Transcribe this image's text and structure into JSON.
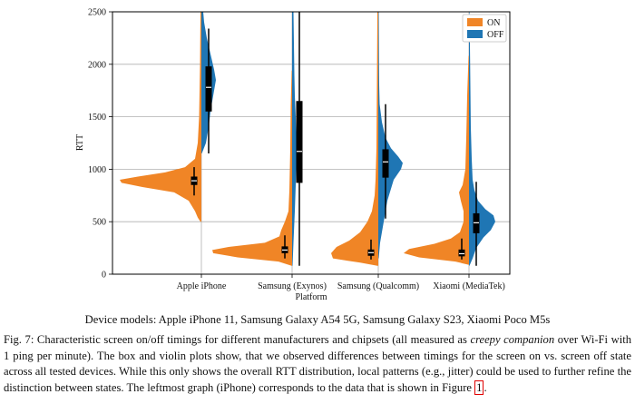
{
  "chart_data": {
    "type": "violin",
    "xlabel": "Platform",
    "ylabel": "RTT",
    "ylim": [
      0,
      2500
    ],
    "yticks": [
      "0",
      "500",
      "1000",
      "1500",
      "2000",
      "2500"
    ],
    "grid": "horizontal",
    "legend_position": "top-right",
    "categories": [
      "Apple iPhone",
      "Samsung (Exynos)",
      "Samsung (Qualcomm)",
      "Xiaomi (MediaTek)"
    ],
    "series": [
      {
        "name": "ON",
        "color": "#f08526",
        "boxes": [
          {
            "min": 750,
            "q1": 850,
            "median": 890,
            "q3": 930,
            "max": 1020
          },
          {
            "min": 150,
            "q1": 200,
            "median": 230,
            "q3": 265,
            "max": 370
          },
          {
            "min": 140,
            "q1": 175,
            "median": 205,
            "q3": 235,
            "max": 330
          },
          {
            "min": 140,
            "q1": 170,
            "median": 195,
            "q3": 235,
            "max": 340
          }
        ]
      },
      {
        "name": "OFF",
        "color": "#1f76b4",
        "boxes": [
          {
            "min": 1150,
            "q1": 1550,
            "median": 1780,
            "q3": 1980,
            "max": 2340
          },
          {
            "min": 80,
            "q1": 870,
            "median": 1170,
            "q3": 1650,
            "max": 2500
          },
          {
            "min": 530,
            "q1": 920,
            "median": 1070,
            "q3": 1190,
            "max": 1620
          },
          {
            "min": 80,
            "q1": 390,
            "median": 490,
            "q3": 580,
            "max": 880
          }
        ]
      }
    ]
  },
  "models_line": "Device models: Apple iPhone 11, Samsung Galaxy A54 5G, Samsung Galaxy S23, Xiaomi Poco M5s",
  "caption": {
    "part1": "Fig. 7: Characteristic screen on/off timings for different manufacturers and chipsets (all measured as ",
    "emph": "creepy companion",
    "part2": " over Wi-Fi with 1 ping per minute). The box and violin plots show, that we observed differences between timings for the screen on vs. screen off state across all tested devices. While this only shows the overall RTT distribution, local patterns (e.g., jitter) could be used to further refine the distinction between states. The leftmost graph (iPhone) corresponds to the data that is shown in Figure ",
    "ref": "1",
    "part3": "."
  }
}
